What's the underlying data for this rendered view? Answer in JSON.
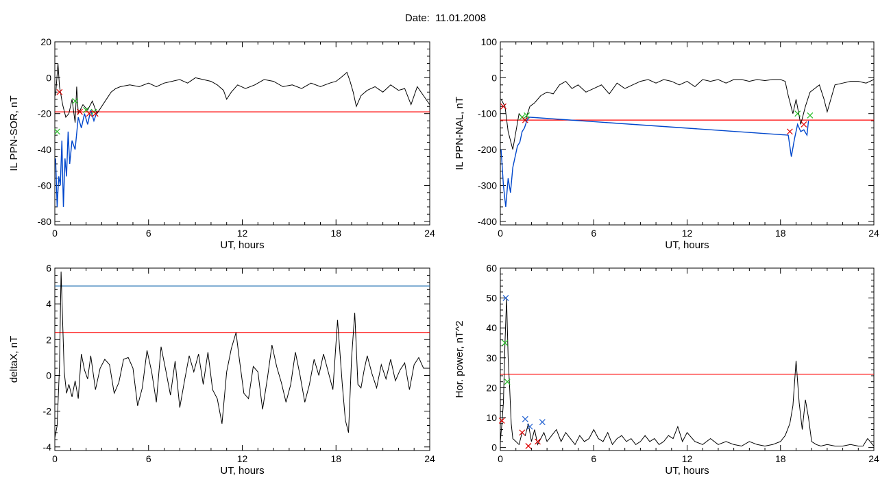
{
  "page": {
    "title": "Date:  11.01.2008"
  },
  "colors": {
    "trace": "#000000",
    "threshold": "#ff0000",
    "highlight": "#0047cc",
    "level_blue": "#1f6fb0",
    "marker_red": "#e00000",
    "marker_green": "#22bb22",
    "marker_blue": "#1f5fd0"
  },
  "chart_data": [
    {
      "id": "sor",
      "type": "line",
      "title": "",
      "xlabel": "UT, hours",
      "ylabel": "IL PPN-SOR, nT",
      "xlim": [
        0,
        24
      ],
      "ylim": [
        -82,
        20
      ],
      "xticks": [
        0,
        6,
        12,
        18,
        24
      ],
      "yticks": [
        -80,
        -60,
        -40,
        -20,
        0,
        20
      ],
      "threshold": -19,
      "series": [
        {
          "style": "black",
          "x": [
            0.05,
            0.2,
            0.3,
            0.5,
            0.7,
            0.9,
            1.1,
            1.3,
            1.4,
            1.5,
            1.8,
            2.1,
            2.4,
            2.7,
            3.0,
            3.3,
            3.6,
            3.9,
            4.2,
            4.8,
            5.4,
            6.0,
            6.5,
            7.0,
            7.5,
            8.0,
            8.5,
            9.0,
            9.5,
            10.0,
            10.4,
            10.8,
            11.0,
            11.3,
            11.7,
            12.2,
            12.8,
            13.4,
            14.0,
            14.6,
            15.2,
            15.8,
            16.4,
            17.0,
            17.6,
            18.0,
            18.3,
            18.7,
            18.9,
            19.1,
            19.3,
            19.6,
            20.0,
            20.5,
            21.0,
            21.5,
            22.0,
            22.4,
            22.8,
            23.2,
            23.6,
            24.0
          ],
          "y": [
            -10,
            8,
            -5,
            -15,
            -22,
            -20,
            -12,
            -25,
            -5,
            -20,
            -15,
            -18,
            -13,
            -20,
            -16,
            -12,
            -8,
            -6,
            -5,
            -4,
            -5,
            -3,
            -5,
            -3,
            -2,
            -1,
            -3,
            0,
            -1,
            -2,
            -4,
            -7,
            -12,
            -8,
            -4,
            -6,
            -4,
            -1,
            -2,
            -5,
            -4,
            -6,
            -3,
            -5,
            -3,
            -2,
            0,
            3,
            -2,
            -8,
            -16,
            -10,
            -7,
            -5,
            -8,
            -4,
            -7,
            -6,
            -15,
            -5,
            -10,
            -15
          ]
        },
        {
          "style": "blue",
          "x": [
            0.05,
            0.15,
            0.25,
            0.35,
            0.45,
            0.55,
            0.65,
            0.75,
            0.85,
            0.95,
            1.1,
            1.3,
            1.5,
            1.7,
            1.9,
            2.1,
            2.3,
            2.5,
            2.7
          ],
          "y": [
            -45,
            -72,
            -55,
            -60,
            -35,
            -72,
            -45,
            -55,
            -30,
            -48,
            -35,
            -40,
            -22,
            -28,
            -20,
            -26,
            -18,
            -24,
            -19
          ]
        }
      ],
      "markers": [
        {
          "x": 0.15,
          "y": -30,
          "color": "green"
        },
        {
          "x": 0.3,
          "y": -8,
          "color": "red"
        },
        {
          "x": 1.3,
          "y": -13,
          "color": "green"
        },
        {
          "x": 1.6,
          "y": -19,
          "color": "red"
        },
        {
          "x": 2.0,
          "y": -18,
          "color": "green"
        },
        {
          "x": 2.2,
          "y": -20,
          "color": "red"
        },
        {
          "x": 2.5,
          "y": -19,
          "color": "green"
        },
        {
          "x": 2.6,
          "y": -20,
          "color": "red"
        }
      ]
    },
    {
      "id": "nal",
      "type": "line",
      "title": "",
      "xlabel": "UT, hours",
      "ylabel": "IL PPN-NAL, nT",
      "xlim": [
        0,
        24
      ],
      "ylim": [
        -410,
        100
      ],
      "xticks": [
        0,
        6,
        12,
        18,
        24
      ],
      "yticks": [
        -400,
        -300,
        -200,
        -100,
        0,
        100
      ],
      "threshold": -118,
      "series": [
        {
          "style": "black",
          "x": [
            0.05,
            0.3,
            0.5,
            0.8,
            1.2,
            1.6,
            1.9,
            2.2,
            2.6,
            3.0,
            3.4,
            3.8,
            4.2,
            4.6,
            5.0,
            5.5,
            6.0,
            6.5,
            7.0,
            7.5,
            8.0,
            8.5,
            9.0,
            9.5,
            10.0,
            10.5,
            11.0,
            11.5,
            12.0,
            12.5,
            13.0,
            13.5,
            14.0,
            14.5,
            15.0,
            15.5,
            16.0,
            16.5,
            17.0,
            17.5,
            18.0,
            18.3,
            18.5,
            18.8,
            19.0,
            19.3,
            19.6,
            19.9,
            20.2,
            20.5,
            20.8,
            21.0,
            21.5,
            22.0,
            22.5,
            23.0,
            23.5,
            24.0
          ],
          "y": [
            -60,
            -80,
            -150,
            -200,
            -100,
            -120,
            -80,
            -70,
            -50,
            -40,
            -45,
            -20,
            -10,
            -30,
            -20,
            -40,
            -30,
            -20,
            -45,
            -15,
            -30,
            -20,
            -10,
            -5,
            -15,
            -5,
            -10,
            -20,
            -10,
            -25,
            -5,
            -10,
            -5,
            -15,
            -5,
            -5,
            -10,
            -5,
            -8,
            -5,
            -5,
            -10,
            -50,
            -100,
            -60,
            -130,
            -80,
            -40,
            -30,
            -20,
            -60,
            -95,
            -20,
            -15,
            -10,
            -10,
            -15,
            -5
          ]
        },
        {
          "style": "blue",
          "x": [
            0.05,
            0.2,
            0.35,
            0.5,
            0.65,
            0.8,
            0.95,
            1.1,
            1.25,
            1.4,
            1.55,
            1.7,
            1.85,
            18.5,
            18.7,
            18.9,
            19.1,
            19.3,
            19.5,
            19.7,
            19.8
          ],
          "y": [
            -200,
            -300,
            -360,
            -280,
            -320,
            -250,
            -220,
            -190,
            -180,
            -150,
            -140,
            -120,
            -110,
            -160,
            -220,
            -170,
            -130,
            -150,
            -145,
            -160,
            -120
          ]
        }
      ],
      "markers": [
        {
          "x": 0.2,
          "y": -80,
          "color": "red"
        },
        {
          "x": 1.4,
          "y": -110,
          "color": "green"
        },
        {
          "x": 1.6,
          "y": -118,
          "color": "red"
        },
        {
          "x": 1.7,
          "y": -105,
          "color": "green"
        },
        {
          "x": 18.6,
          "y": -150,
          "color": "red"
        },
        {
          "x": 19.1,
          "y": -100,
          "color": "green"
        },
        {
          "x": 19.5,
          "y": -130,
          "color": "red"
        },
        {
          "x": 19.9,
          "y": -105,
          "color": "green"
        }
      ]
    },
    {
      "id": "deltax",
      "type": "line",
      "title": "",
      "xlabel": "UT, hours",
      "ylabel": "deltaX, nT",
      "xlim": [
        0,
        24
      ],
      "ylim": [
        -4.2,
        6
      ],
      "xticks": [
        0,
        6,
        12,
        18,
        24
      ],
      "yticks": [
        -4,
        -2,
        0,
        2,
        4,
        6
      ],
      "threshold": 2.4,
      "level": 5.0,
      "series": [
        {
          "style": "black",
          "x": [
            0.0,
            0.15,
            0.3,
            0.4,
            0.5,
            0.6,
            0.75,
            0.9,
            1.1,
            1.3,
            1.5,
            1.7,
            1.9,
            2.1,
            2.3,
            2.6,
            2.9,
            3.2,
            3.5,
            3.8,
            4.1,
            4.4,
            4.7,
            5.0,
            5.3,
            5.6,
            5.9,
            6.2,
            6.5,
            6.8,
            7.1,
            7.4,
            7.7,
            8.0,
            8.3,
            8.6,
            8.9,
            9.2,
            9.5,
            9.8,
            10.1,
            10.4,
            10.7,
            11.0,
            11.3,
            11.6,
            11.8,
            12.1,
            12.4,
            12.7,
            13.0,
            13.3,
            13.6,
            13.9,
            14.2,
            14.5,
            14.8,
            15.1,
            15.4,
            15.7,
            16.0,
            16.3,
            16.6,
            16.9,
            17.2,
            17.5,
            17.8,
            18.1,
            18.4,
            18.6,
            18.8,
            19.0,
            19.2,
            19.4,
            19.6,
            19.8,
            20.0,
            20.3,
            20.6,
            20.9,
            21.2,
            21.5,
            21.8,
            22.1,
            22.4,
            22.7,
            23.0,
            23.3,
            23.6,
            24.0
          ],
          "y": [
            -3.5,
            -2.8,
            0.5,
            5.8,
            3.0,
            0.2,
            -1.0,
            -0.5,
            -1.2,
            -0.3,
            -1.3,
            1.2,
            0.3,
            -0.2,
            1.1,
            -0.8,
            0.4,
            0.9,
            0.6,
            -1.0,
            -0.4,
            0.9,
            1.0,
            0.4,
            -1.7,
            -0.7,
            1.4,
            0.2,
            -1.5,
            1.6,
            0.3,
            -1.1,
            0.8,
            -1.8,
            -0.3,
            1.1,
            0.2,
            1.2,
            -0.5,
            1.3,
            -0.8,
            -1.3,
            -2.7,
            0.2,
            1.5,
            2.4,
            1.0,
            -1.0,
            -1.3,
            0.5,
            0.2,
            -1.9,
            -0.2,
            1.7,
            0.5,
            -0.4,
            -1.5,
            -0.5,
            1.3,
            0.0,
            -1.5,
            -0.5,
            0.9,
            0.0,
            1.2,
            0.2,
            -0.8,
            3.1,
            -0.5,
            -2.5,
            -3.2,
            1.0,
            3.5,
            -0.5,
            -0.7,
            0.3,
            1.1,
            0.1,
            -0.7,
            0.6,
            -0.2,
            0.9,
            -0.3,
            0.3,
            0.7,
            -0.8,
            0.6,
            1.0,
            0.4,
            0.4
          ]
        }
      ],
      "markers": []
    },
    {
      "id": "power",
      "type": "line",
      "title": "",
      "xlabel": "UT, hours",
      "ylabel": "Hor. power, nT^2",
      "xlim": [
        0,
        24
      ],
      "ylim": [
        -1,
        60
      ],
      "xticks": [
        0,
        6,
        12,
        18,
        24
      ],
      "yticks": [
        0,
        10,
        20,
        30,
        40,
        50,
        60
      ],
      "threshold": 24.5,
      "series": [
        {
          "style": "black",
          "x": [
            0.0,
            0.1,
            0.2,
            0.3,
            0.4,
            0.5,
            0.6,
            0.7,
            0.8,
            1.0,
            1.2,
            1.4,
            1.6,
            1.8,
            2.0,
            2.2,
            2.4,
            2.6,
            2.8,
            3.0,
            3.3,
            3.6,
            3.9,
            4.2,
            4.5,
            4.8,
            5.1,
            5.4,
            5.7,
            6.0,
            6.3,
            6.6,
            6.9,
            7.2,
            7.5,
            7.8,
            8.1,
            8.4,
            8.7,
            9.0,
            9.3,
            9.6,
            9.9,
            10.2,
            10.5,
            10.8,
            11.1,
            11.4,
            11.7,
            12.0,
            12.5,
            13.0,
            13.5,
            14.0,
            14.5,
            15.0,
            15.5,
            16.0,
            16.5,
            17.0,
            17.5,
            18.0,
            18.3,
            18.6,
            18.8,
            19.0,
            19.2,
            19.4,
            19.6,
            19.8,
            20.0,
            20.3,
            20.6,
            21.0,
            21.5,
            22.0,
            22.5,
            23.0,
            23.3,
            23.6,
            24.0
          ],
          "y": [
            2,
            8,
            15,
            35,
            50,
            30,
            20,
            8,
            3,
            2,
            1,
            5,
            4,
            8,
            2,
            6,
            1,
            3,
            5,
            2,
            4,
            6,
            2,
            5,
            3,
            1,
            4,
            2,
            3,
            6,
            3,
            2,
            5,
            1,
            3,
            4,
            2,
            3,
            1,
            2,
            4,
            2,
            3,
            1,
            2,
            4,
            3,
            7,
            2,
            5,
            2,
            1,
            3,
            1,
            2,
            1,
            0.5,
            2,
            1,
            0.5,
            1,
            2,
            4,
            8,
            14,
            29,
            15,
            6,
            16,
            10,
            2,
            1,
            0.5,
            1,
            0.5,
            0.5,
            1,
            0.5,
            0.5,
            3,
            0.5
          ]
        }
      ],
      "markers": [
        {
          "x": 0.1,
          "y": 9,
          "color": "red"
        },
        {
          "x": 0.3,
          "y": 35,
          "color": "green"
        },
        {
          "x": 0.35,
          "y": 50,
          "color": "blue"
        },
        {
          "x": 0.45,
          "y": 22,
          "color": "green"
        },
        {
          "x": 1.4,
          "y": 5,
          "color": "red"
        },
        {
          "x": 1.6,
          "y": 9.5,
          "color": "blue"
        },
        {
          "x": 1.8,
          "y": 0.5,
          "color": "red"
        },
        {
          "x": 1.9,
          "y": 7,
          "color": "blue"
        },
        {
          "x": 2.4,
          "y": 2,
          "color": "red"
        },
        {
          "x": 2.7,
          "y": 8.5,
          "color": "blue"
        }
      ]
    }
  ]
}
